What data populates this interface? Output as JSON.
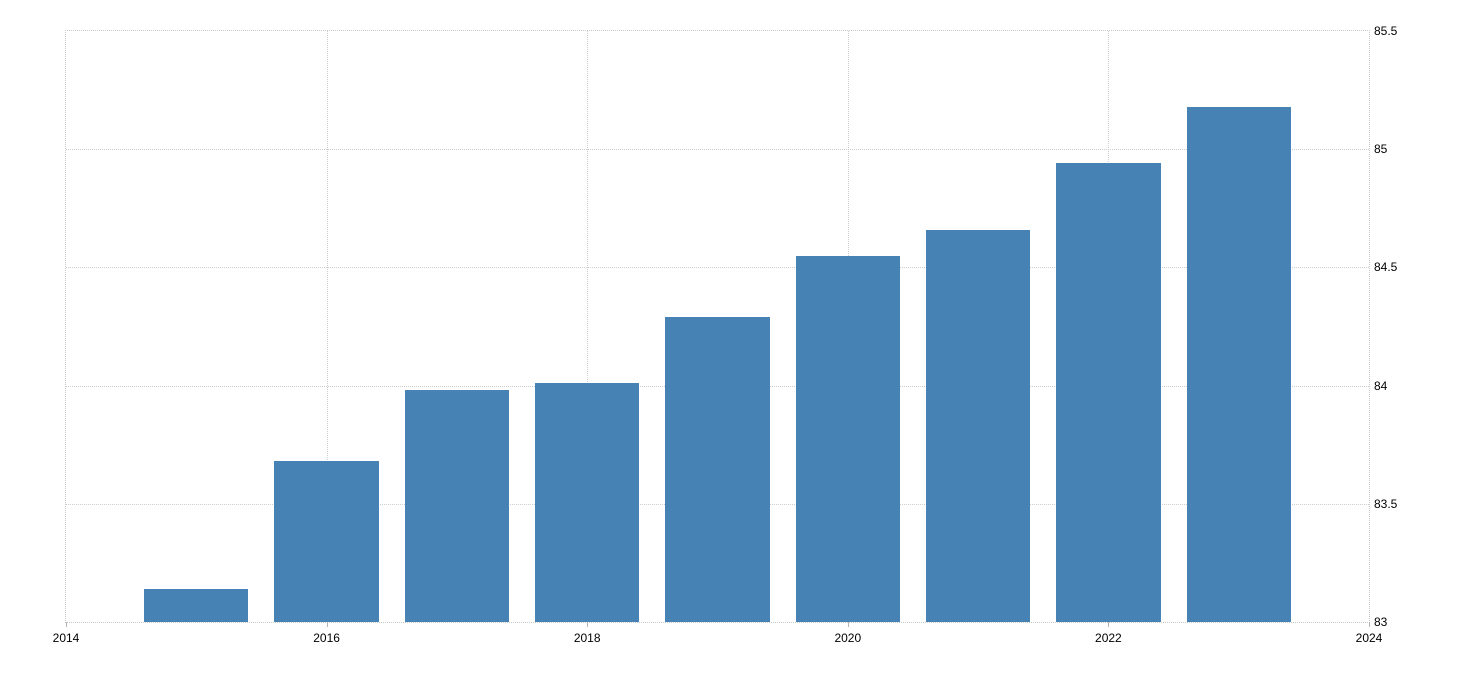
{
  "chart_data": {
    "type": "bar",
    "title": "",
    "xlabel": "",
    "ylabel": "",
    "categories": [
      2015,
      2016,
      2017,
      2018,
      2019,
      2020,
      2021,
      2022,
      2023
    ],
    "values": [
      83.14,
      83.68,
      83.98,
      84.01,
      84.29,
      84.55,
      84.66,
      84.94,
      85.18
    ],
    "xlim": [
      2014,
      2024
    ],
    "ylim": [
      83,
      85.5
    ],
    "x_ticks": [
      2014,
      2016,
      2018,
      2020,
      2022,
      2024
    ],
    "x_tick_labels": [
      "2014",
      "2016",
      "2018",
      "2020",
      "2022",
      "2024"
    ],
    "y_ticks": [
      83,
      83.5,
      84,
      84.5,
      85,
      85.5
    ],
    "y_tick_labels": [
      "83",
      "83.5",
      "84",
      "84.5",
      "85",
      "85.5"
    ],
    "bar_color": "#4682b4",
    "bar_width_fraction": 0.8,
    "grid": true,
    "grid_color": "#cecece",
    "background": "#ffffff",
    "y_axis_side": "right",
    "legend": null
  }
}
